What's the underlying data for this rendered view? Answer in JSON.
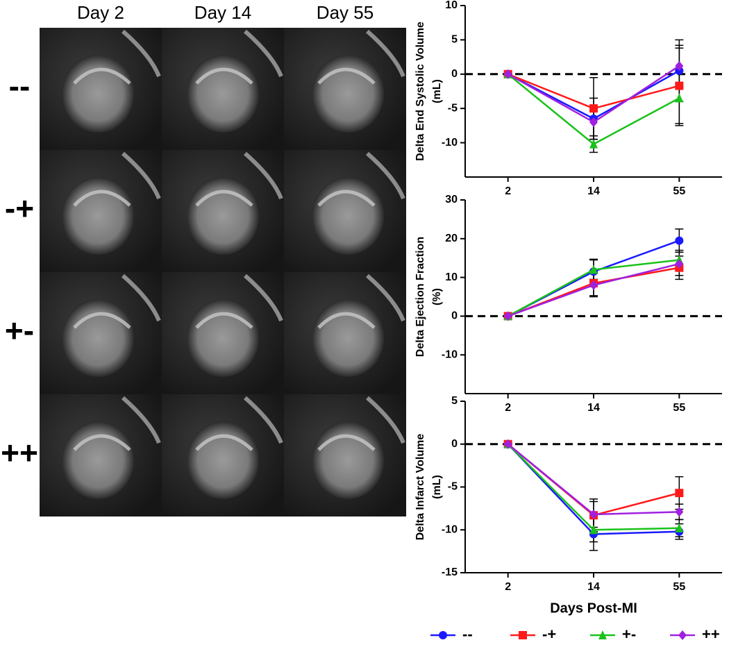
{
  "image_grid": {
    "columns": [
      "Day 2",
      "Day 14",
      "Day 55"
    ],
    "rows": [
      "--",
      "-+",
      "+-",
      "++"
    ]
  },
  "legend": [
    {
      "name": "--",
      "color": "#1a1aff",
      "marker": "circle"
    },
    {
      "name": "-+",
      "color": "#ff1a1a",
      "marker": "square"
    },
    {
      "name": "+-",
      "color": "#1ac21a",
      "marker": "triangle"
    },
    {
      "name": "++",
      "color": "#a020e0",
      "marker": "diamond"
    }
  ],
  "chart_data": [
    {
      "type": "line",
      "ylabel": [
        "Delta End Systolic Volume",
        "(mL)"
      ],
      "categories": [
        "2",
        "14",
        "55"
      ],
      "ylim": [
        -15,
        10
      ],
      "yticks": [
        -10,
        -5,
        0,
        5,
        10
      ],
      "zero_line": 0,
      "series": [
        {
          "values": [
            0,
            -6.5,
            0.5
          ],
          "errors": [
            0,
            3,
            4.5
          ]
        },
        {
          "values": [
            0,
            -5,
            -1.7
          ],
          "errors": [
            0,
            4.5,
            5.5
          ]
        },
        {
          "values": [
            0,
            -10.2,
            -3.5
          ],
          "errors": [
            0,
            1.2,
            4
          ]
        },
        {
          "values": [
            0,
            -7,
            1.2
          ],
          "errors": [
            0,
            2.5,
            3
          ]
        }
      ]
    },
    {
      "type": "line",
      "ylabel": [
        "Delta Ejection Fraction",
        "(%)"
      ],
      "categories": [
        "2",
        "14",
        "55"
      ],
      "ylim": [
        -20,
        30
      ],
      "yticks": [
        -10,
        0,
        10,
        20,
        30
      ],
      "zero_line": 0,
      "series": [
        {
          "values": [
            0,
            11.5,
            19.5
          ],
          "errors": [
            0,
            3.2,
            3
          ]
        },
        {
          "values": [
            0,
            8.5,
            12.5
          ],
          "errors": [
            0,
            3.2,
            3
          ]
        },
        {
          "values": [
            0,
            12,
            14.5
          ],
          "errors": [
            0,
            2.5,
            2.5
          ]
        },
        {
          "values": [
            0,
            8,
            13.5
          ],
          "errors": [
            0,
            3,
            3
          ]
        }
      ]
    },
    {
      "type": "line",
      "ylabel": [
        "Delta Infarct Volume",
        "(mL)"
      ],
      "xlabel": "Days Post-MI",
      "categories": [
        "2",
        "14",
        "55"
      ],
      "ylim": [
        -15,
        5
      ],
      "yticks": [
        -15,
        -10,
        -5,
        0,
        5
      ],
      "zero_line": 0,
      "series": [
        {
          "values": [
            0,
            -10.5,
            -10.2
          ],
          "errors": [
            0,
            1.9,
            0.9
          ]
        },
        {
          "values": [
            0,
            -8.3,
            -5.7
          ],
          "errors": [
            0,
            1.9,
            1.9
          ]
        },
        {
          "values": [
            0,
            -10,
            -9.8
          ],
          "errors": [
            0,
            1.4,
            1
          ]
        },
        {
          "values": [
            0,
            -8.2,
            -7.9
          ],
          "errors": [
            0,
            1.5,
            0.9
          ]
        }
      ]
    }
  ]
}
